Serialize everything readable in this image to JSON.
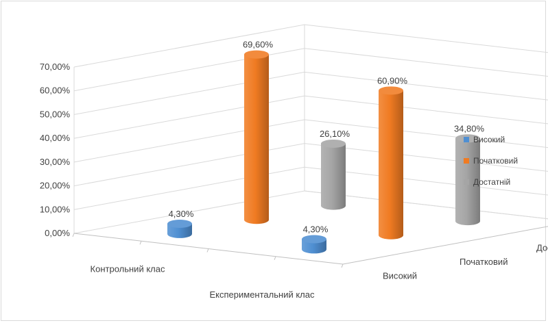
{
  "chart_data": {
    "type": "bar",
    "categories": [
      "Контрольний клас",
      "Експериментальний клас"
    ],
    "depth_categories": [
      "Високий",
      "Початковий",
      "Достатній"
    ],
    "series": [
      {
        "name": "Високий",
        "values": [
          4.3,
          4.3
        ],
        "labels": [
          "4,30%",
          "4,30%"
        ],
        "color": "#4f8fd2"
      },
      {
        "name": "Початковий",
        "values": [
          69.6,
          60.9
        ],
        "labels": [
          "69,60%",
          "60,90%"
        ],
        "color": "#f07b22"
      },
      {
        "name": "Достатній",
        "values": [
          26.1,
          34.8
        ],
        "labels": [
          "26,10%",
          "34,80%"
        ],
        "color": "#a5a5a5"
      }
    ],
    "yticks": [
      "0,00%",
      "10,00%",
      "20,00%",
      "30,00%",
      "40,00%",
      "50,00%",
      "60,00%",
      "70,00%"
    ],
    "ylim": [
      0,
      70
    ],
    "grid": true,
    "legend_position": "right",
    "shape": "cylinder"
  }
}
